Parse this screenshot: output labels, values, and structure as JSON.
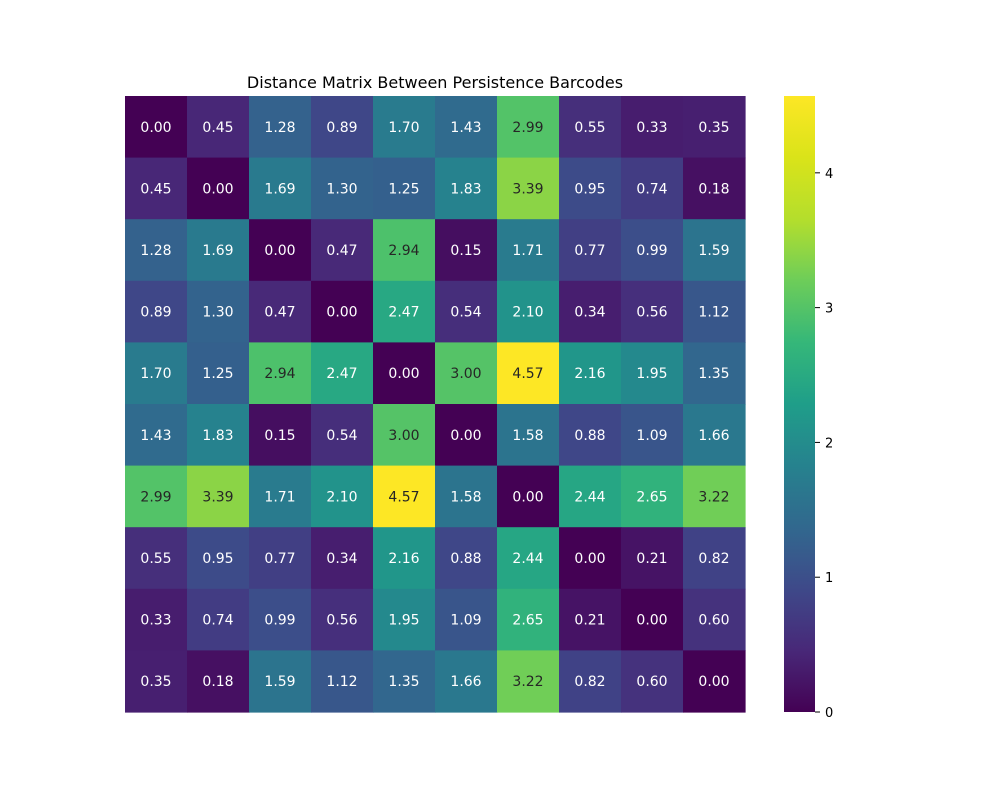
{
  "chart_data": {
    "type": "heatmap",
    "title": "Distance Matrix Between Persistence Barcodes",
    "xlabel": "",
    "ylabel": "",
    "colormap": "viridis",
    "color_range": [
      0,
      4.57
    ],
    "colorbar_ticks": [
      0,
      1,
      2,
      3,
      4
    ],
    "values": [
      [
        0.0,
        0.45,
        1.28,
        0.89,
        1.7,
        1.43,
        2.99,
        0.55,
        0.33,
        0.35
      ],
      [
        0.45,
        0.0,
        1.69,
        1.3,
        1.25,
        1.83,
        3.39,
        0.95,
        0.74,
        0.18
      ],
      [
        1.28,
        1.69,
        0.0,
        0.47,
        2.94,
        0.15,
        1.71,
        0.77,
        0.99,
        1.59
      ],
      [
        0.89,
        1.3,
        0.47,
        0.0,
        2.47,
        0.54,
        2.1,
        0.34,
        0.56,
        1.12
      ],
      [
        1.7,
        1.25,
        2.94,
        2.47,
        0.0,
        3.0,
        4.57,
        2.16,
        1.95,
        1.35
      ],
      [
        1.43,
        1.83,
        0.15,
        0.54,
        3.0,
        0.0,
        1.58,
        0.88,
        1.09,
        1.66
      ],
      [
        2.99,
        3.39,
        1.71,
        2.1,
        4.57,
        1.58,
        0.0,
        2.44,
        2.65,
        3.22
      ],
      [
        0.55,
        0.95,
        0.77,
        0.34,
        2.16,
        0.88,
        2.44,
        0.0,
        0.21,
        0.82
      ],
      [
        0.33,
        0.74,
        0.99,
        0.56,
        1.95,
        1.09,
        2.65,
        0.21,
        0.0,
        0.6
      ],
      [
        0.35,
        0.18,
        1.59,
        1.12,
        1.35,
        1.66,
        3.22,
        0.82,
        0.6,
        0.0
      ]
    ],
    "annotation_format": "2 decimals",
    "grid": false,
    "legend": "colorbar-right"
  }
}
